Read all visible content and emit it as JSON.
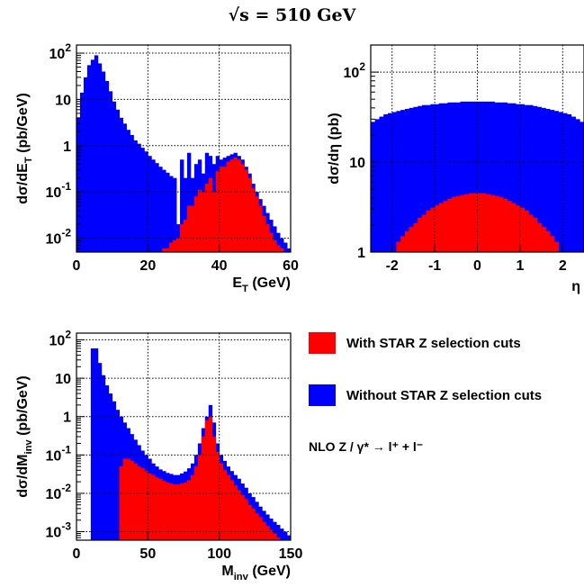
{
  "title": "√s = 510 GeV",
  "legend": {
    "entries": [
      {
        "label": "With STAR Z selection cuts",
        "color": "#ff0000"
      },
      {
        "label": "Without STAR Z selection cuts",
        "color": "#0000ff"
      }
    ],
    "process": "NLO Z / γ* → l⁺ + l⁻"
  },
  "chart_data": [
    {
      "type": "bar",
      "histogram": true,
      "xlabel": "E_T (GeV)",
      "ylabel": "dσ/dE_T (pb/GeV)",
      "xlim": [
        0,
        60
      ],
      "ylim": [
        0.005,
        150
      ],
      "yscale": "log",
      "grid": true,
      "xticks": [
        "0",
        "20",
        "40",
        "60"
      ],
      "yticks": [
        {
          "value": 100,
          "base": "10",
          "exp": "2"
        },
        {
          "value": 10,
          "base": "10",
          "exp": ""
        },
        {
          "value": 1,
          "base": "1",
          "exp": ""
        },
        {
          "value": 0.1,
          "base": "10",
          "exp": "-1"
        },
        {
          "value": 0.01,
          "base": "10",
          "exp": "-2"
        }
      ],
      "series": [
        {
          "name": "Without STAR Z selection cuts",
          "color": "#0000ff",
          "x": [
            0,
            1,
            2,
            3,
            4,
            5,
            6,
            7,
            8,
            9,
            10,
            11,
            12,
            13,
            14,
            15,
            16,
            17,
            18,
            19,
            20,
            21,
            22,
            23,
            24,
            25,
            26,
            27,
            28,
            29,
            30,
            31,
            32,
            33,
            34,
            35,
            36,
            37,
            38,
            39,
            40,
            41,
            42,
            43,
            44,
            45,
            46,
            47,
            48,
            49,
            50,
            51,
            52,
            53,
            54,
            55,
            56,
            57,
            58,
            59
          ],
          "values": [
            4,
            14,
            30,
            55,
            72,
            90,
            60,
            40,
            25,
            15,
            9,
            6,
            4,
            3,
            2.2,
            1.7,
            1.3,
            1.1,
            0.9,
            0.75,
            0.6,
            0.5,
            0.42,
            0.35,
            0.3,
            0.26,
            0.22,
            0.2,
            0.02,
            0.5,
            0.2,
            0.7,
            0.2,
            0.4,
            0.5,
            0.25,
            0.7,
            0.6,
            0.4,
            0.6,
            0.5,
            0.55,
            0.6,
            0.65,
            0.7,
            0.6,
            0.5,
            0.35,
            0.25,
            0.15,
            0.1,
            0.07,
            0.05,
            0.035,
            0.025,
            0.018,
            0.013,
            0.01,
            0.008,
            0.006
          ]
        },
        {
          "name": "With STAR Z selection cuts",
          "color": "#ff0000",
          "x": [
            24,
            25,
            26,
            27,
            28,
            29,
            30,
            31,
            32,
            33,
            34,
            35,
            36,
            37,
            38,
            39,
            40,
            41,
            42,
            43,
            44,
            45,
            46,
            47,
            48,
            49,
            50,
            51,
            52,
            53,
            54,
            55,
            56,
            57
          ],
          "values": [
            0.006,
            0.006,
            0.008,
            0.009,
            0.01,
            0.02,
            0.025,
            0.05,
            0.05,
            0.08,
            0.11,
            0.1,
            0.15,
            0.2,
            0.1,
            0.28,
            0.35,
            0.35,
            0.45,
            0.5,
            0.55,
            0.5,
            0.4,
            0.3,
            0.2,
            0.12,
            0.08,
            0.05,
            0.03,
            0.02,
            0.013,
            0.009,
            0.007,
            0.006
          ]
        }
      ]
    },
    {
      "type": "bar",
      "histogram": true,
      "xlabel": "η",
      "ylabel": "dσ/dη (pb)",
      "xlim": [
        -2.5,
        2.5
      ],
      "ylim": [
        1,
        200
      ],
      "yscale": "log",
      "grid": true,
      "xticks": [
        "-2",
        "-1",
        "0",
        "1",
        "2"
      ],
      "yticks": [
        {
          "value": 100,
          "base": "10",
          "exp": "2"
        },
        {
          "value": 10,
          "base": "10",
          "exp": ""
        },
        {
          "value": 1,
          "base": "1",
          "exp": ""
        }
      ],
      "series": [
        {
          "name": "Without STAR Z selection cuts",
          "color": "#0000ff",
          "x": [
            -2.5,
            -2.4,
            -2.3,
            -2.2,
            -2.1,
            -2,
            -1.9,
            -1.8,
            -1.7,
            -1.6,
            -1.5,
            -1.4,
            -1.3,
            -1.2,
            -1.1,
            -1,
            -0.9,
            -0.8,
            -0.7,
            -0.6,
            -0.5,
            -0.4,
            -0.3,
            -0.2,
            -0.1,
            0,
            0.1,
            0.2,
            0.3,
            0.4,
            0.5,
            0.6,
            0.7,
            0.8,
            0.9,
            1,
            1.1,
            1.2,
            1.3,
            1.4,
            1.5,
            1.6,
            1.7,
            1.8,
            1.9,
            2,
            2.1,
            2.2,
            2.3,
            2.4
          ],
          "values": [
            28,
            30,
            32,
            34,
            35,
            36,
            37,
            38,
            39,
            40,
            41,
            42,
            43,
            43,
            44,
            44,
            45,
            45,
            46,
            46,
            46,
            47,
            47,
            47,
            47,
            47,
            47,
            47,
            47,
            46,
            46,
            46,
            45,
            45,
            44,
            44,
            43,
            43,
            42,
            41,
            40,
            39,
            38,
            37,
            36,
            35,
            34,
            32,
            30,
            28
          ]
        },
        {
          "name": "With STAR Z selection cuts",
          "color": "#ff0000",
          "x": [
            -1.9,
            -1.8,
            -1.7,
            -1.6,
            -1.5,
            -1.4,
            -1.3,
            -1.2,
            -1.1,
            -1,
            -0.9,
            -0.8,
            -0.7,
            -0.6,
            -0.5,
            -0.4,
            -0.3,
            -0.2,
            -0.1,
            0,
            0.1,
            0.2,
            0.3,
            0.4,
            0.5,
            0.6,
            0.7,
            0.8,
            0.9,
            1,
            1.1,
            1.2,
            1.3,
            1.4,
            1.5,
            1.6,
            1.7,
            1.8
          ],
          "values": [
            1.3,
            1.5,
            1.7,
            1.9,
            2.1,
            2.4,
            2.6,
            2.9,
            3.1,
            3.3,
            3.5,
            3.7,
            3.9,
            4.1,
            4.2,
            4.3,
            4.4,
            4.5,
            4.5,
            4.5,
            4.5,
            4.4,
            4.3,
            4.2,
            4.1,
            3.9,
            3.7,
            3.5,
            3.3,
            3.1,
            2.9,
            2.6,
            2.4,
            2.1,
            1.9,
            1.7,
            1.5,
            1.3
          ]
        }
      ]
    },
    {
      "type": "bar",
      "histogram": true,
      "xlabel": "M_inv (GeV)",
      "ylabel": "dσ/dM_inv (pb/GeV)",
      "xlim": [
        0,
        150
      ],
      "ylim": [
        0.0006,
        150
      ],
      "yscale": "log",
      "grid": true,
      "xticks": [
        "0",
        "50",
        "100",
        "150"
      ],
      "yticks": [
        {
          "value": 100,
          "base": "10",
          "exp": "2"
        },
        {
          "value": 10,
          "base": "10",
          "exp": ""
        },
        {
          "value": 1,
          "base": "1",
          "exp": ""
        },
        {
          "value": 0.1,
          "base": "10",
          "exp": "-1"
        },
        {
          "value": 0.01,
          "base": "10",
          "exp": "-2"
        },
        {
          "value": 0.001,
          "base": "10",
          "exp": "-3"
        }
      ],
      "series": [
        {
          "name": "Without STAR Z selection cuts",
          "color": "#0000ff",
          "x": [
            10,
            12.5,
            15,
            17.5,
            20,
            22.5,
            25,
            27.5,
            30,
            32.5,
            35,
            37.5,
            40,
            42.5,
            45,
            47.5,
            50,
            52.5,
            55,
            57.5,
            60,
            62.5,
            65,
            67.5,
            70,
            72.5,
            75,
            77.5,
            80,
            82.5,
            85,
            87.5,
            90,
            92.5,
            95,
            97.5,
            100,
            102.5,
            105,
            107.5,
            110,
            112.5,
            115,
            117.5,
            120,
            122.5,
            125,
            127.5,
            130,
            132.5,
            135,
            137.5,
            140,
            142.5,
            145,
            147.5
          ],
          "values": [
            60,
            60,
            25,
            12,
            6.5,
            4,
            2.5,
            1.5,
            1,
            0.7,
            0.5,
            0.35,
            0.25,
            0.18,
            0.13,
            0.1,
            0.08,
            0.06,
            0.05,
            0.042,
            0.038,
            0.034,
            0.032,
            0.03,
            0.03,
            0.033,
            0.037,
            0.045,
            0.06,
            0.1,
            0.2,
            0.5,
            1.0,
            2.0,
            0.7,
            0.2,
            0.1,
            0.07,
            0.05,
            0.038,
            0.03,
            0.024,
            0.018,
            0.014,
            0.01,
            0.008,
            0.006,
            0.0045,
            0.0035,
            0.0028,
            0.0022,
            0.0018,
            0.0015,
            0.0012,
            0.001,
            0.0008
          ]
        },
        {
          "name": "With STAR Z selection cuts",
          "color": "#ff0000",
          "x": [
            30,
            32.5,
            35,
            37.5,
            40,
            42.5,
            45,
            47.5,
            50,
            52.5,
            55,
            57.5,
            60,
            62.5,
            65,
            67.5,
            70,
            72.5,
            75,
            77.5,
            80,
            82.5,
            85,
            87.5,
            90,
            92.5,
            95,
            97.5,
            100,
            102.5,
            105,
            107.5,
            110,
            112.5,
            115,
            117.5,
            120,
            122.5,
            125,
            127.5,
            130,
            132.5,
            135,
            137.5,
            140
          ],
          "values": [
            0.05,
            0.08,
            0.08,
            0.07,
            0.06,
            0.05,
            0.045,
            0.038,
            0.033,
            0.03,
            0.026,
            0.024,
            0.021,
            0.019,
            0.018,
            0.017,
            0.017,
            0.018,
            0.019,
            0.022,
            0.03,
            0.05,
            0.1,
            0.3,
            0.8,
            1.0,
            0.3,
            0.12,
            0.06,
            0.04,
            0.03,
            0.022,
            0.016,
            0.012,
            0.009,
            0.007,
            0.005,
            0.004,
            0.003,
            0.0024,
            0.0018,
            0.0014,
            0.0011,
            0.0009,
            0.0007
          ]
        }
      ]
    }
  ]
}
